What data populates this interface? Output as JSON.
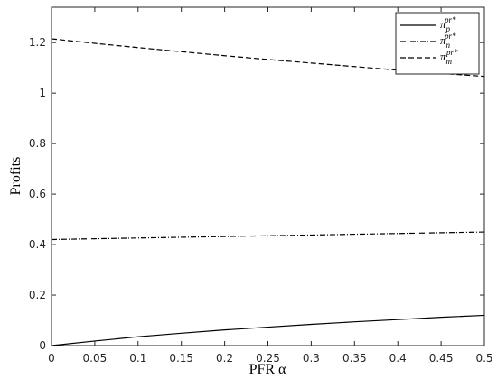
{
  "chart_data": {
    "type": "line",
    "xlabel": "PFR α",
    "ylabel": "Profits",
    "x": [
      0,
      0.05,
      0.1,
      0.15,
      0.2,
      0.25,
      0.3,
      0.35,
      0.4,
      0.45,
      0.5
    ],
    "series": [
      {
        "name": "π",
        "subscript": "p",
        "superscript": "pr*",
        "color": "#000000",
        "linestyle": "solid",
        "values": [
          0,
          0.018,
          0.035,
          0.049,
          0.062,
          0.073,
          0.084,
          0.094,
          0.103,
          0.112,
          0.12
        ]
      },
      {
        "name": "π",
        "subscript": "n",
        "superscript": "pr*",
        "color": "#000000",
        "linestyle": "dashdot",
        "values": [
          0.42,
          0.423,
          0.426,
          0.429,
          0.432,
          0.435,
          0.438,
          0.441,
          0.444,
          0.447,
          0.45
        ]
      },
      {
        "name": "π",
        "subscript": "m",
        "superscript": "pr*",
        "color": "#000000",
        "linestyle": "dashed",
        "values": [
          1.215,
          1.197,
          1.18,
          1.164,
          1.148,
          1.133,
          1.119,
          1.105,
          1.091,
          1.078,
          1.066
        ]
      }
    ],
    "xlim": [
      0,
      0.5
    ],
    "ylim": [
      0,
      1.34
    ],
    "xticks": [
      0,
      0.05,
      0.1,
      0.15,
      0.2,
      0.25,
      0.3,
      0.35,
      0.4,
      0.45,
      0.5
    ],
    "yticks": [
      0,
      0.2,
      0.4,
      0.6,
      0.8,
      1,
      1.2
    ],
    "grid": false,
    "legend": "top-right"
  }
}
